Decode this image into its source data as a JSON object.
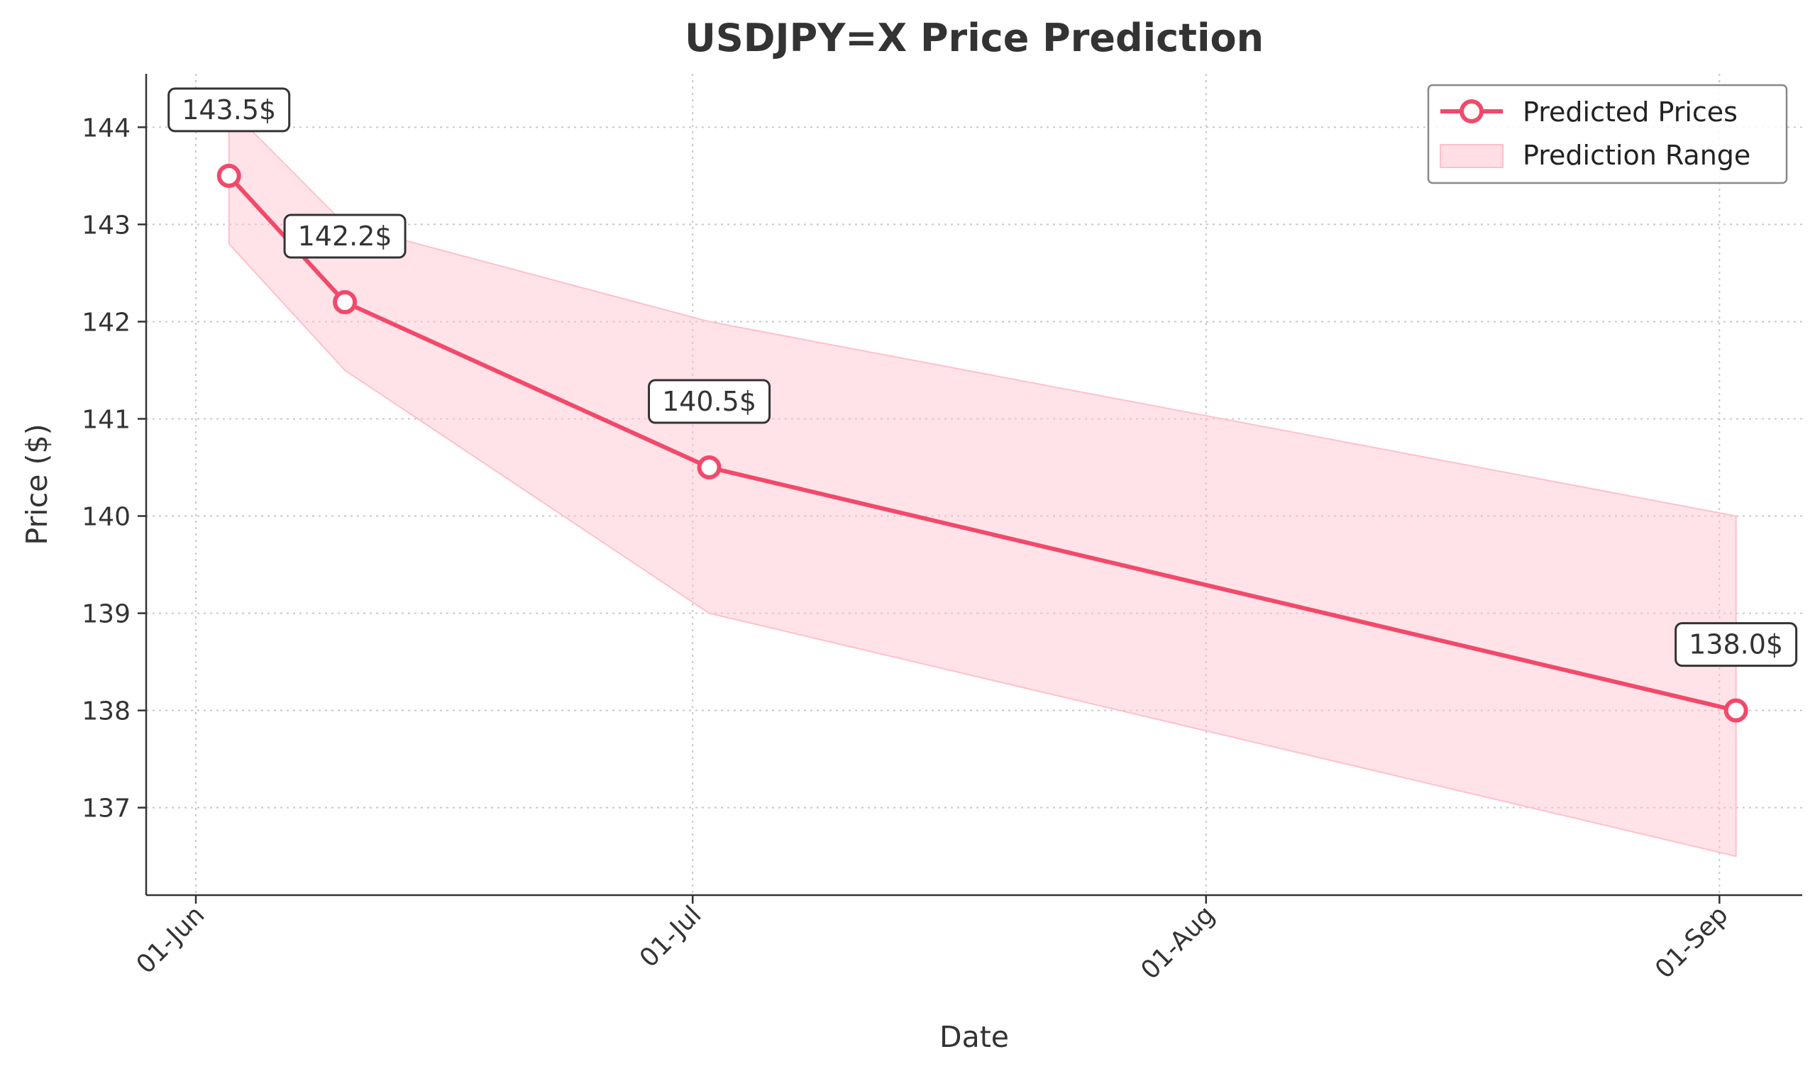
{
  "chart_data": {
    "type": "line",
    "title": "USDJPY=X Price Prediction",
    "xlabel": "Date",
    "ylabel": "Price ($)",
    "x_ticks": [
      {
        "date": "2024-06-01",
        "label": "01-Jun"
      },
      {
        "date": "2024-07-01",
        "label": "01-Jul"
      },
      {
        "date": "2024-08-01",
        "label": "01-Aug"
      },
      {
        "date": "2024-09-01",
        "label": "01-Sep"
      }
    ],
    "xlim": [
      "2024-05-29",
      "2024-09-06"
    ],
    "ylim": [
      136.1,
      144.55
    ],
    "y_ticks": [
      137,
      138,
      139,
      140,
      141,
      142,
      143,
      144
    ],
    "grid": true,
    "legend_position": "top-right",
    "series": [
      {
        "name": "Predicted Prices",
        "color": "#f2496b",
        "points": [
          {
            "x": "2024-06-03",
            "y": 143.5,
            "label": "143.5$"
          },
          {
            "x": "2024-06-10",
            "y": 142.2,
            "label": "142.2$"
          },
          {
            "x": "2024-07-02",
            "y": 140.5,
            "label": "140.5$"
          },
          {
            "x": "2024-09-02",
            "y": 138.0,
            "label": "138.0$"
          }
        ]
      }
    ],
    "range": {
      "name": "Prediction Range",
      "color": "#ffc0cb",
      "points": [
        {
          "x": "2024-06-03",
          "low": 142.8,
          "high": 144.2
        },
        {
          "x": "2024-06-10",
          "low": 141.5,
          "high": 143.0
        },
        {
          "x": "2024-07-02",
          "low": 139.0,
          "high": 142.0
        },
        {
          "x": "2024-09-02",
          "low": 136.5,
          "high": 140.0
        }
      ]
    }
  }
}
